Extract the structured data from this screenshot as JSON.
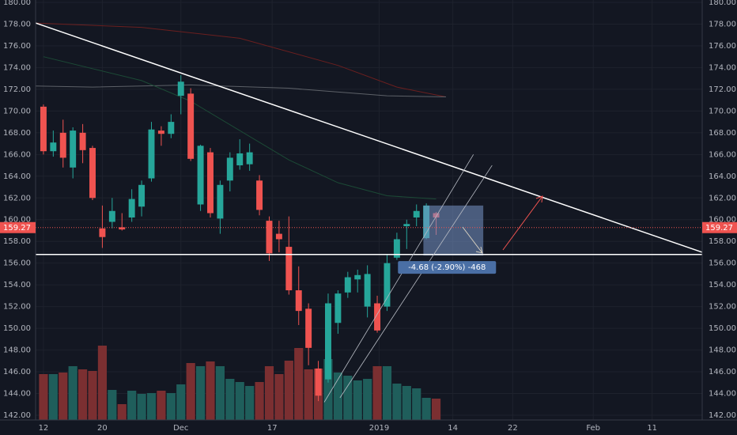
{
  "chart_data": {
    "type": "candlestick",
    "open": [
      170.4,
      166.3,
      168.0,
      164.8,
      168.0,
      166.6,
      159.2,
      159.8,
      159.3,
      160.2,
      161.2,
      163.8,
      168.2,
      167.9,
      171.4,
      171.6,
      161.4,
      166.2,
      160.1,
      163.6,
      165.0,
      165.1,
      163.6,
      159.9,
      158.7,
      157.5,
      153.5,
      151.8,
      146.3,
      145.3,
      150.5,
      153.3,
      154.5,
      152.0,
      152.3,
      152.0,
      156.5,
      159.4,
      160.2,
      158.3,
      160.6
    ],
    "high": [
      170.6,
      168.2,
      169.2,
      168.5,
      168.8,
      166.8,
      161.3,
      162.0,
      160.6,
      162.8,
      163.6,
      169.0,
      168.6,
      169.7,
      173.3,
      172.1,
      166.9,
      166.6,
      163.6,
      166.2,
      167.4,
      167.0,
      164.1,
      160.3,
      159.9,
      160.3,
      155.7,
      152.3,
      147.0,
      153.2,
      153.5,
      155.2,
      155.4,
      155.8,
      153.0,
      156.8,
      158.8,
      160.0,
      161.4,
      161.5,
      160.7
    ],
    "low": [
      166.0,
      165.8,
      164.8,
      163.8,
      165.2,
      161.8,
      157.4,
      159.2,
      159.0,
      159.8,
      160.3,
      163.5,
      166.8,
      167.5,
      169.7,
      165.4,
      160.8,
      160.2,
      158.7,
      162.6,
      164.6,
      164.5,
      160.4,
      156.2,
      157.0,
      153.1,
      150.3,
      146.6,
      143.3,
      145.0,
      149.5,
      152.8,
      153.3,
      151.0,
      149.6,
      151.6,
      156.3,
      157.3,
      159.4,
      158.2,
      158.6
    ],
    "close": [
      166.3,
      167.1,
      165.7,
      168.2,
      166.4,
      162.0,
      158.4,
      160.8,
      159.1,
      161.9,
      163.2,
      168.3,
      167.9,
      169.0,
      172.7,
      165.6,
      166.8,
      160.6,
      163.2,
      165.7,
      166.1,
      166.2,
      160.9,
      156.9,
      158.2,
      153.5,
      151.6,
      148.2,
      143.8,
      152.3,
      153.2,
      154.7,
      154.9,
      155.0,
      149.8,
      156.0,
      158.2,
      159.6,
      160.8,
      161.3,
      160.2
    ],
    "volume": [
      58,
      58,
      60,
      68,
      64,
      62,
      94,
      38,
      20,
      37,
      33,
      34,
      37,
      34,
      45,
      72,
      68,
      74,
      68,
      52,
      48,
      43,
      48,
      68,
      58,
      75,
      91,
      64,
      65,
      77,
      60,
      56,
      50,
      52,
      68,
      68,
      46,
      43,
      40,
      28,
      27
    ],
    "vlim": [
      0,
      100
    ],
    "up_color": "#26a69a",
    "down_color": "#ef5350",
    "volume_up_color": "#1f5e5b",
    "volume_down_color": "#7b2f31",
    "xlim": [
      -0.8,
      67.1
    ],
    "ylim": [
      142,
      180
    ],
    "yticks": [
      {
        "value": 142,
        "label": "142.00"
      },
      {
        "value": 144,
        "label": "144.00"
      },
      {
        "value": 146,
        "label": "146.00"
      },
      {
        "value": 148,
        "label": "148.00"
      },
      {
        "value": 150,
        "label": "150.00"
      },
      {
        "value": 152,
        "label": "152.00"
      },
      {
        "value": 154,
        "label": "154.00"
      },
      {
        "value": 156,
        "label": "156.00"
      },
      {
        "value": 158,
        "label": "158.00"
      },
      {
        "value": 160,
        "label": "160.00"
      },
      {
        "value": 162,
        "label": "162.00"
      },
      {
        "value": 164,
        "label": "164.00"
      },
      {
        "value": 166,
        "label": "166.00"
      },
      {
        "value": 168,
        "label": "168.00"
      },
      {
        "value": 170,
        "label": "170.00"
      },
      {
        "value": 172,
        "label": "172.00"
      },
      {
        "value": 174,
        "label": "174.00"
      },
      {
        "value": 176,
        "label": "176.00"
      },
      {
        "value": 178,
        "label": "178.00"
      },
      {
        "value": 180,
        "label": "180.00"
      }
    ],
    "xticks": [
      {
        "value": 0,
        "label": "12"
      },
      {
        "value": 6,
        "label": "20"
      },
      {
        "value": 14,
        "label": "Dec"
      },
      {
        "value": 23.3,
        "label": "17"
      },
      {
        "value": 34.2,
        "label": "2019"
      },
      {
        "value": 41.7,
        "label": "14"
      },
      {
        "value": 47.8,
        "label": "22"
      },
      {
        "value": 56,
        "label": "Feb"
      },
      {
        "value": 62,
        "label": "11"
      }
    ],
    "grid": true,
    "last_price": 159.27,
    "moving_averages": [
      {
        "color": "#6b1f1f",
        "x": [
          -0.8,
          10,
          20,
          30,
          36,
          41
        ],
        "values": [
          178.1,
          177.7,
          176.7,
          174.2,
          172.2,
          171.3
        ]
      },
      {
        "color": "#5d6168",
        "x": [
          -0.8,
          5,
          15,
          25,
          35,
          41
        ],
        "values": [
          172.3,
          172.2,
          172.4,
          172.1,
          171.4,
          171.3
        ]
      },
      {
        "color": "#1c4a36",
        "x": [
          0,
          10,
          15,
          25,
          30,
          35,
          40
        ],
        "values": [
          175.0,
          172.8,
          170.9,
          165.5,
          163.4,
          162.2,
          161.9
        ]
      }
    ],
    "lines": [
      {
        "color": "#ffffff",
        "x": [
          -0.8,
          67.1
        ],
        "values": [
          178.1,
          157.0
        ]
      },
      {
        "color": "#ffffff",
        "x": [
          -0.8,
          67.1
        ],
        "values": [
          156.8,
          156.8
        ]
      },
      {
        "color": "#b8bcc4",
        "x": [
          28.6,
          43.8
        ],
        "values": [
          143.2,
          166.0
        ]
      },
      {
        "color": "#b8bcc4",
        "x": [
          30.2,
          45.7
        ],
        "values": [
          143.6,
          165.0
        ]
      }
    ],
    "measure": {
      "x": [
        38.7,
        44.8
      ],
      "values": [
        161.3,
        156.7
      ],
      "label": "-4.68 (-2.90%) -468"
    }
  }
}
